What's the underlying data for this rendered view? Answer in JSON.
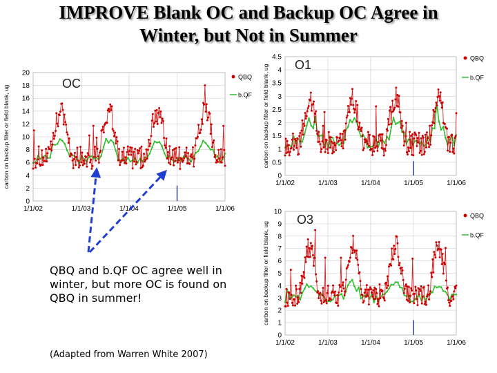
{
  "slide": {
    "title_line1": "IMPROVE Blank OC and Backup OC Agree in",
    "title_line2": "Winter, but Not in Summer",
    "note": "QBQ and b.QF OC agree well in winter, but more OC is found on QBQ in summer!",
    "source": "(Adapted from Warren White 2007)",
    "colors": {
      "qbq": "#cc0000",
      "qbq_marker": "#cc0000",
      "bqf": "#2fbf2f",
      "arrow": "#1f3fd0",
      "vline": "#2b3f8f",
      "grid": "#cccccc"
    }
  },
  "chart_data": [
    {
      "id": "oc",
      "type": "line",
      "title": "OC",
      "ylabel": "carbon on backup filter or field blank, ug",
      "xlabel": "",
      "ylim": [
        0,
        20
      ],
      "yticks": [
        0,
        2,
        4,
        6,
        8,
        10,
        12,
        14,
        16,
        18,
        20
      ],
      "xlim": [
        "2002-01-01",
        "2006-01-01"
      ],
      "xticks": [
        "1/1/02",
        "1/1/03",
        "1/1/04",
        "1/1/05",
        "1/1/06"
      ],
      "vline": "2005-01-01",
      "grid": true,
      "legend_position": "top-right",
      "series": [
        {
          "name": "QBQ",
          "marker": "dot",
          "seasonal": {
            "base": 6.8,
            "amp": 7.0,
            "peak_month": 7,
            "noise": 1.8
          }
        },
        {
          "name": "b.QF",
          "marker": "line",
          "seasonal": {
            "base": 6.5,
            "amp": 3.0,
            "peak_month": 7,
            "noise": 0.6
          }
        }
      ]
    },
    {
      "id": "o1",
      "type": "line",
      "title": "O1",
      "ylabel": "carbon on backup filter or field blank, ug",
      "xlabel": "",
      "ylim": [
        0,
        4.5
      ],
      "yticks": [
        0,
        0.5,
        1,
        1.5,
        2,
        2.5,
        3,
        3.5,
        4,
        4.5
      ],
      "xlim": [
        "2002-01-01",
        "2006-01-01"
      ],
      "xticks": [
        "1/1/02",
        "1/1/03",
        "1/1/04",
        "1/1/05",
        "1/1/06"
      ],
      "vline": "2005-01-01",
      "grid": true,
      "legend_position": "top-right",
      "series": [
        {
          "name": "QBQ",
          "marker": "dot",
          "seasonal": {
            "base": 1.2,
            "amp": 1.7,
            "peak_month": 7,
            "noise": 0.45
          }
        },
        {
          "name": "b.QF",
          "marker": "line",
          "seasonal": {
            "base": 1.3,
            "amp": 0.7,
            "peak_month": 7,
            "noise": 0.25
          }
        }
      ]
    },
    {
      "id": "o3",
      "type": "line",
      "title": "O3",
      "ylabel": "carbon on backup filter or field blank, ug",
      "xlabel": "",
      "ylim": [
        0,
        10
      ],
      "yticks": [
        0,
        1,
        2,
        3,
        4,
        5,
        6,
        7,
        8,
        9,
        10
      ],
      "xlim": [
        "2002-01-01",
        "2006-01-01"
      ],
      "xticks": [
        "1/1/02",
        "1/1/03",
        "1/1/04",
        "1/1/05",
        "1/1/06"
      ],
      "vline": "2005-01-01",
      "grid": true,
      "legend_position": "top-right",
      "series": [
        {
          "name": "QBQ",
          "marker": "dot",
          "seasonal": {
            "base": 3.2,
            "amp": 4.0,
            "peak_month": 7,
            "noise": 0.9
          }
        },
        {
          "name": "b.QF",
          "marker": "line",
          "seasonal": {
            "base": 3.0,
            "amp": 1.2,
            "peak_month": 7,
            "noise": 0.35
          }
        }
      ]
    }
  ]
}
